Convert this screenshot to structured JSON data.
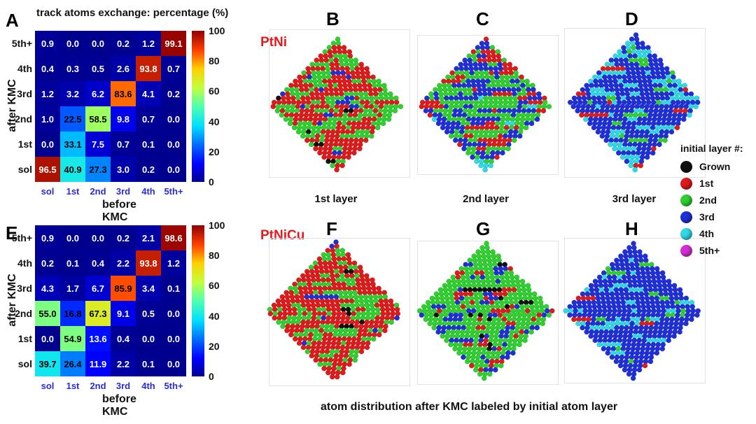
{
  "panel_letters": {
    "A": "A",
    "B": "B",
    "C": "C",
    "D": "D",
    "E": "E",
    "F": "F",
    "G": "G",
    "H": "H"
  },
  "heatmap_title": "track atoms exchange: percentage (%)",
  "alloy_labels": {
    "top": "PtNi",
    "bottom": "PtNiCu"
  },
  "layer_captions": [
    "1st layer",
    "2nd layer",
    "3rd layer"
  ],
  "bottom_caption": "atom distribution after KMC labeled by initial atom layer",
  "legend": {
    "title": "initial layer #:",
    "items": [
      {
        "label": "Grown",
        "color": "#111111"
      },
      {
        "label": "1st",
        "color": "#e01a1a"
      },
      {
        "label": "2nd",
        "color": "#2fd12f"
      },
      {
        "label": "3rd",
        "color": "#1f2fd9"
      },
      {
        "label": "4th",
        "color": "#2fd9e6"
      },
      {
        "label": "5th+",
        "color": "#d62fd6"
      }
    ]
  },
  "chart_data": [
    {
      "type": "heatmap",
      "name": "PtNi",
      "title": "track atoms exchange: percentage (%)",
      "xlabel": "before KMC",
      "ylabel": "after KMC",
      "x_categories": [
        "sol",
        "1st",
        "2nd",
        "3rd",
        "4th",
        "5th+"
      ],
      "y_categories": [
        "5th+",
        "4th",
        "3rd",
        "2nd",
        "1st",
        "sol"
      ],
      "values": [
        [
          0.9,
          0.0,
          0.0,
          0.2,
          1.2,
          99.1
        ],
        [
          0.4,
          0.3,
          0.5,
          2.6,
          93.8,
          0.7
        ],
        [
          1.2,
          3.2,
          6.2,
          83.6,
          4.1,
          0.2
        ],
        [
          1.0,
          22.5,
          58.5,
          9.8,
          0.7,
          0.0
        ],
        [
          0.0,
          33.1,
          7.5,
          0.7,
          0.1,
          0.0
        ],
        [
          96.5,
          40.9,
          27.3,
          3.0,
          0.2,
          0.0
        ]
      ],
      "colorbar_range": [
        0,
        100
      ],
      "colorbar_ticks": [
        "100",
        "80",
        "60",
        "40",
        "20",
        "0"
      ]
    },
    {
      "type": "heatmap",
      "name": "PtNiCu",
      "title": "",
      "xlabel": "before KMC",
      "ylabel": "after KMC",
      "x_categories": [
        "sol",
        "1st",
        "2nd",
        "3rd",
        "4th",
        "5th+"
      ],
      "y_categories": [
        "5th+",
        "4th",
        "3rd",
        "2nd",
        "1st",
        "sol"
      ],
      "values": [
        [
          0.9,
          0.0,
          0.0,
          0.2,
          2.1,
          98.6
        ],
        [
          0.2,
          0.1,
          0.4,
          2.2,
          93.8,
          1.2
        ],
        [
          4.3,
          1.7,
          6.7,
          85.9,
          3.4,
          0.1
        ],
        [
          55.0,
          16.8,
          67.3,
          9.1,
          0.5,
          0.0
        ],
        [
          0.0,
          54.9,
          13.6,
          0.4,
          0.0,
          0.0
        ],
        [
          39.7,
          26.4,
          11.9,
          2.2,
          0.1,
          0.0
        ]
      ],
      "colorbar_range": [
        0,
        100
      ],
      "colorbar_ticks": [
        "100",
        "80",
        "60",
        "40",
        "20",
        "0"
      ]
    }
  ]
}
